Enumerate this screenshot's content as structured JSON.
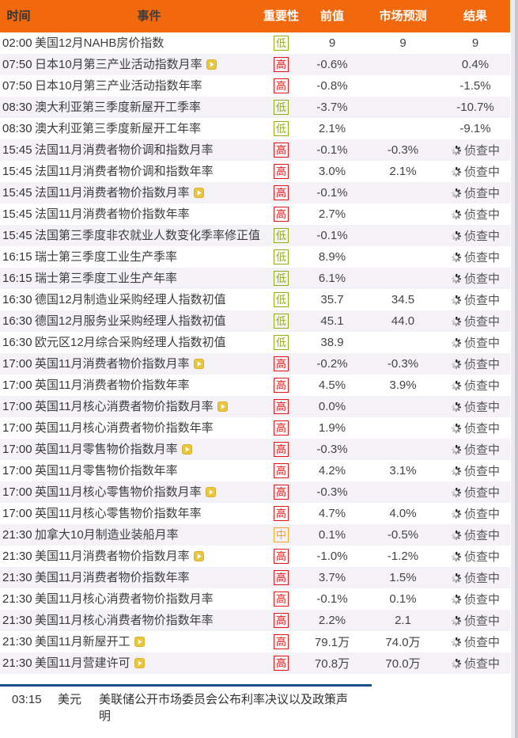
{
  "table": {
    "columns": [
      "时间",
      "事件",
      "重要性",
      "前值",
      "市场预测",
      "结果"
    ]
  },
  "pending_label": "侦查中",
  "rows": [
    {
      "time": "02:00",
      "event": "美国12月NAHB房价指数",
      "play": false,
      "importance": "低",
      "previous": "9",
      "forecast": "9",
      "result": "9",
      "pending": false
    },
    {
      "time": "07:50",
      "event": "日本10月第三产业活动指数月率",
      "play": true,
      "importance": "高",
      "previous": "-0.6%",
      "forecast": "",
      "result": "0.4%",
      "pending": false
    },
    {
      "time": "07:50",
      "event": "日本10月第三产业活动指数年率",
      "play": false,
      "importance": "高",
      "previous": "-0.8%",
      "forecast": "",
      "result": "-1.5%",
      "pending": false
    },
    {
      "time": "08:30",
      "event": "澳大利亚第三季度新屋开工季率",
      "play": false,
      "importance": "低",
      "previous": "-3.7%",
      "forecast": "",
      "result": "-10.7%",
      "pending": false
    },
    {
      "time": "08:30",
      "event": "澳大利亚第三季度新屋开工年率",
      "play": false,
      "importance": "低",
      "previous": "2.1%",
      "forecast": "",
      "result": "-9.1%",
      "pending": false
    },
    {
      "time": "15:45",
      "event": "法国11月消费者物价调和指数月率",
      "play": false,
      "importance": "高",
      "previous": "-0.1%",
      "forecast": "-0.3%",
      "result": "",
      "pending": true
    },
    {
      "time": "15:45",
      "event": "法国11月消费者物价调和指数年率",
      "play": false,
      "importance": "高",
      "previous": "3.0%",
      "forecast": "2.1%",
      "result": "",
      "pending": true
    },
    {
      "time": "15:45",
      "event": "法国11月消费者物价指数月率",
      "play": true,
      "importance": "高",
      "previous": "-0.1%",
      "forecast": "",
      "result": "",
      "pending": true
    },
    {
      "time": "15:45",
      "event": "法国11月消费者物价指数年率",
      "play": false,
      "importance": "高",
      "previous": "2.7%",
      "forecast": "",
      "result": "",
      "pending": true
    },
    {
      "time": "15:45",
      "event": "法国第三季度非农就业人数变化季率修正值",
      "play": false,
      "importance": "低",
      "previous": "-0.1%",
      "forecast": "",
      "result": "",
      "pending": true
    },
    {
      "time": "16:15",
      "event": "瑞士第三季度工业生产季率",
      "play": false,
      "importance": "低",
      "previous": "8.9%",
      "forecast": "",
      "result": "",
      "pending": true
    },
    {
      "time": "16:15",
      "event": "瑞士第三季度工业生产年率",
      "play": false,
      "importance": "低",
      "previous": "6.1%",
      "forecast": "",
      "result": "",
      "pending": true
    },
    {
      "time": "16:30",
      "event": "德国12月制造业采购经理人指数初值",
      "play": false,
      "importance": "低",
      "previous": "35.7",
      "forecast": "34.5",
      "result": "",
      "pending": true
    },
    {
      "time": "16:30",
      "event": "德国12月服务业采购经理人指数初值",
      "play": false,
      "importance": "低",
      "previous": "45.1",
      "forecast": "44.0",
      "result": "",
      "pending": true
    },
    {
      "time": "16:30",
      "event": "欧元区12月综合采购经理人指数初值",
      "play": false,
      "importance": "低",
      "previous": "38.9",
      "forecast": "",
      "result": "",
      "pending": true
    },
    {
      "time": "17:00",
      "event": "英国11月消费者物价指数月率",
      "play": true,
      "importance": "高",
      "previous": "-0.2%",
      "forecast": "-0.3%",
      "result": "",
      "pending": true
    },
    {
      "time": "17:00",
      "event": "英国11月消费者物价指数年率",
      "play": false,
      "importance": "高",
      "previous": "4.5%",
      "forecast": "3.9%",
      "result": "",
      "pending": true
    },
    {
      "time": "17:00",
      "event": "英国11月核心消费者物价指数月率",
      "play": true,
      "importance": "高",
      "previous": "0.0%",
      "forecast": "",
      "result": "",
      "pending": true
    },
    {
      "time": "17:00",
      "event": "英国11月核心消费者物价指数年率",
      "play": false,
      "importance": "高",
      "previous": "1.9%",
      "forecast": "",
      "result": "",
      "pending": true
    },
    {
      "time": "17:00",
      "event": "英国11月零售物价指数月率",
      "play": true,
      "importance": "高",
      "previous": "-0.3%",
      "forecast": "",
      "result": "",
      "pending": true
    },
    {
      "time": "17:00",
      "event": "英国11月零售物价指数年率",
      "play": false,
      "importance": "高",
      "previous": "4.2%",
      "forecast": "3.1%",
      "result": "",
      "pending": true
    },
    {
      "time": "17:00",
      "event": "英国11月核心零售物价指数月率",
      "play": true,
      "importance": "高",
      "previous": "-0.3%",
      "forecast": "",
      "result": "",
      "pending": true
    },
    {
      "time": "17:00",
      "event": "英国11月核心零售物价指数年率",
      "play": false,
      "importance": "高",
      "previous": "4.7%",
      "forecast": "4.0%",
      "result": "",
      "pending": true
    },
    {
      "time": "21:30",
      "event": "加拿大10月制造业装船月率",
      "play": false,
      "importance": "中",
      "previous": "0.1%",
      "forecast": "-0.5%",
      "result": "",
      "pending": true
    },
    {
      "time": "21:30",
      "event": "美国11月消费者物价指数月率",
      "play": true,
      "importance": "高",
      "previous": "-1.0%",
      "forecast": "-1.2%",
      "result": "",
      "pending": true
    },
    {
      "time": "21:30",
      "event": "美国11月消费者物价指数年率",
      "play": false,
      "importance": "高",
      "previous": "3.7%",
      "forecast": "1.5%",
      "result": "",
      "pending": true
    },
    {
      "time": "21:30",
      "event": "美国11月核心消费者物价指数月率",
      "play": false,
      "importance": "高",
      "previous": "-0.1%",
      "forecast": "0.1%",
      "result": "",
      "pending": true
    },
    {
      "time": "21:30",
      "event": "美国11月核心消费者物价指数年率",
      "play": false,
      "importance": "高",
      "previous": "2.2%",
      "forecast": "2.1",
      "result": "",
      "pending": true
    },
    {
      "time": "21:30",
      "event": "美国11月新屋开工",
      "play": true,
      "importance": "高",
      "previous": "79.1万",
      "forecast": "74.0万",
      "result": "",
      "pending": true
    },
    {
      "time": "21:30",
      "event": "美国11月营建许可",
      "play": true,
      "importance": "高",
      "previous": "70.8万",
      "forecast": "70.0万",
      "result": "",
      "pending": true
    }
  ],
  "footer": {
    "time": "03:15",
    "currency": "美元",
    "event": "美联储公开市场委员会公布利率决议以及政策声明"
  },
  "colors": {
    "header_bg": "#f2690d",
    "row_alt": "#f4f2f7",
    "importance_high": "#e01818",
    "importance_mid": "#f0a330",
    "importance_low": "#8fae14",
    "divider_blue": "#1d4f8f",
    "play_icon": "#eac63e"
  }
}
